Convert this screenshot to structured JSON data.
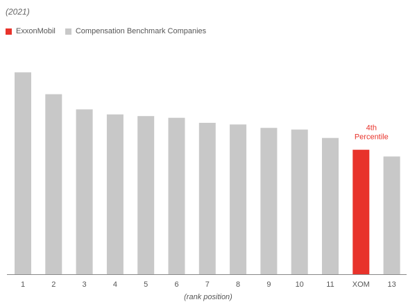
{
  "chart_data": {
    "type": "bar",
    "subtitle": "(2021)",
    "xlabel": "(rank position)",
    "ylabel": "",
    "categories": [
      "1",
      "2",
      "3",
      "4",
      "5",
      "6",
      "7",
      "8",
      "9",
      "10",
      "11",
      "XOM",
      "13"
    ],
    "values": [
      120,
      107,
      98,
      95,
      94,
      93,
      90,
      89,
      87,
      86,
      81,
      74,
      70
    ],
    "highlight_index": 11,
    "ylim": [
      0,
      130
    ],
    "grid": false,
    "legend_position": "top-left",
    "legend": [
      {
        "label": "ExxonMobil",
        "color": "#e8332b"
      },
      {
        "label": "Compensation Benchmark Companies",
        "color": "#c8c8c8"
      }
    ],
    "annotation": {
      "lines": [
        "4th",
        "Percentile"
      ],
      "color": "#e8332b"
    },
    "colors": {
      "bar": "#c8c8c8",
      "highlight": "#e8332b",
      "axis": "#888888"
    }
  }
}
